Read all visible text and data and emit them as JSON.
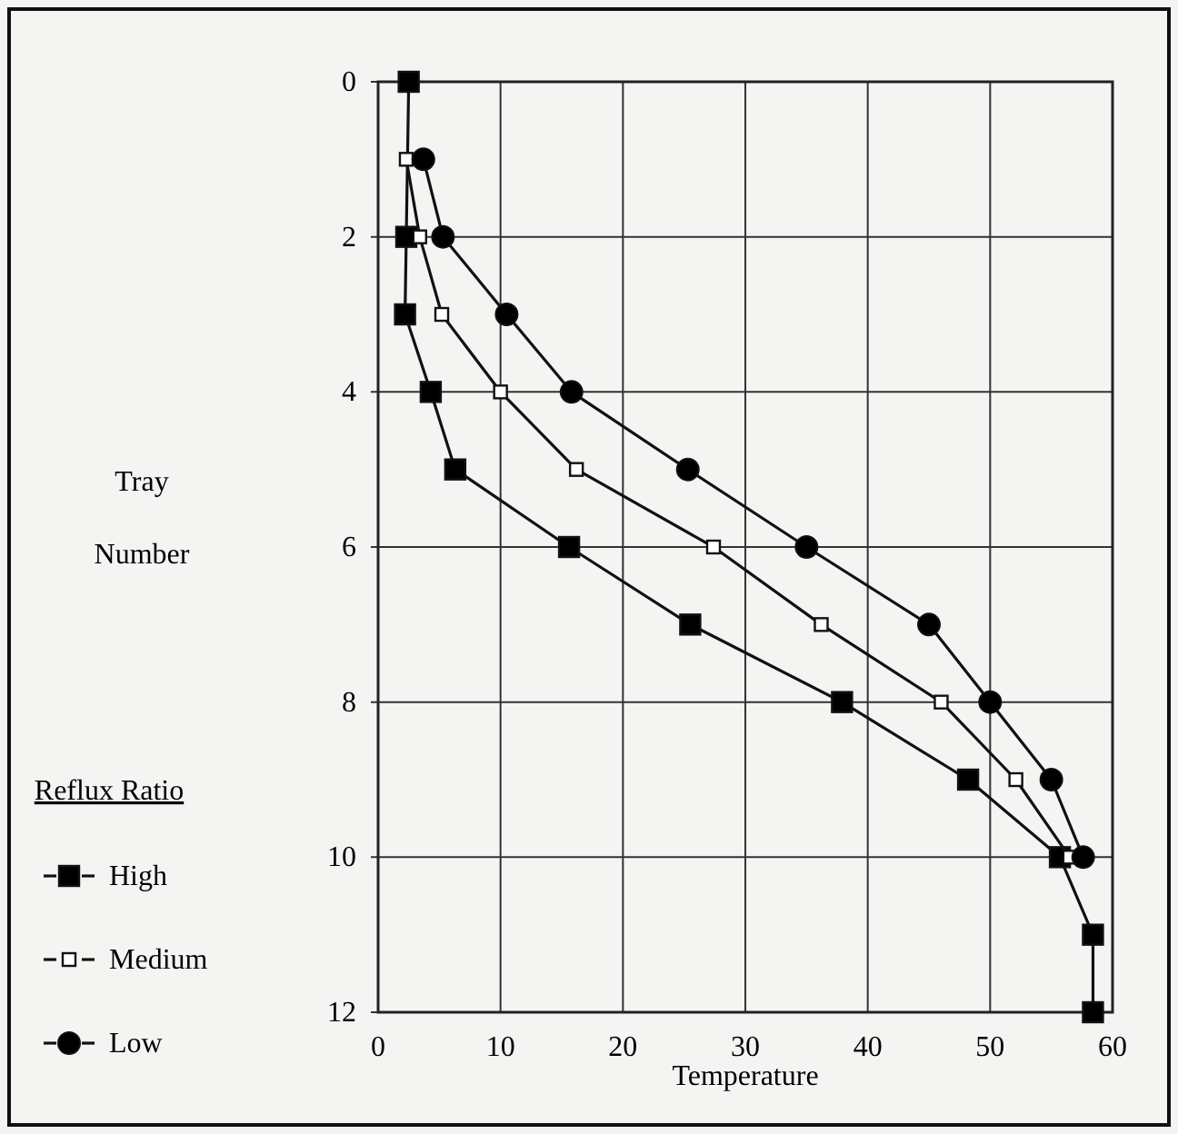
{
  "chart_data": {
    "type": "line",
    "xlabel": "Temperature",
    "ylabel": "Tray Number",
    "legend_title": "Reflux Ratio",
    "xlim": [
      0,
      60
    ],
    "xticks": [
      0,
      10,
      20,
      30,
      40,
      50,
      60
    ],
    "ylim": [
      12,
      0
    ],
    "yticks": [
      0,
      2,
      4,
      6,
      8,
      10,
      12
    ],
    "grid": true,
    "legend": "left",
    "line_style": "solid",
    "series": [
      {
        "name": "High",
        "color": "#000000",
        "marker": "square",
        "x": [
          2.5,
          2.3,
          2.2,
          4.3,
          6.3,
          15.6,
          25.5,
          37.9,
          48.2,
          55.7,
          58.4,
          58.4
        ],
        "values": [
          0,
          2,
          3,
          4,
          5,
          6,
          7,
          8,
          9,
          10,
          11,
          12
        ]
      },
      {
        "name": "Medium",
        "color": "#ffffff",
        "marker": "square",
        "x": [
          2.3,
          3.4,
          5.2,
          10,
          16.2,
          27.4,
          36.2,
          46,
          52.1,
          56.5
        ],
        "values": [
          1,
          2,
          3,
          4,
          5,
          6,
          7,
          8,
          9,
          10
        ]
      },
      {
        "name": "Low",
        "color": "#000000",
        "marker": "circle",
        "x": [
          3.7,
          5.3,
          10.5,
          15.8,
          25.3,
          35,
          45,
          50,
          55,
          57.6
        ],
        "values": [
          1,
          2,
          3,
          4,
          5,
          6,
          7,
          8,
          9,
          10
        ]
      }
    ]
  }
}
